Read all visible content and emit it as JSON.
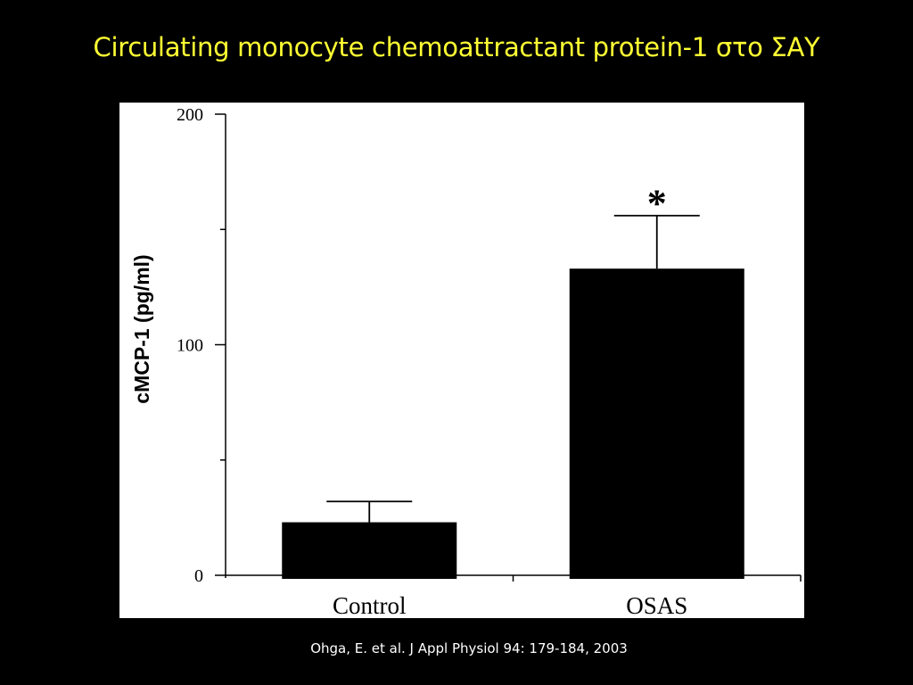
{
  "slide": {
    "title": "Circulating monocyte chemoattractant protein-1 στο ΣΑΥ",
    "citation": "Ohga, E. et al. J Appl Physiol 94: 179-184, 2003",
    "title_color": "#ffff33",
    "background": "#000000"
  },
  "chart_data": {
    "type": "bar",
    "categories": [
      "Control",
      "OSAS"
    ],
    "values": [
      23,
      133
    ],
    "error_upper": [
      32,
      156
    ],
    "annotations": [
      {
        "category": "OSAS",
        "text": "*"
      }
    ],
    "title": "",
    "xlabel": "",
    "ylabel": "cMCP-1 (pg/ml)",
    "ylim": [
      0,
      200
    ],
    "yticks": [
      0,
      100,
      200
    ],
    "yticks_minor": [
      50,
      150
    ],
    "grid": false,
    "legend": "none",
    "bar_color": "#000000",
    "panel_color": "#ffffff"
  }
}
